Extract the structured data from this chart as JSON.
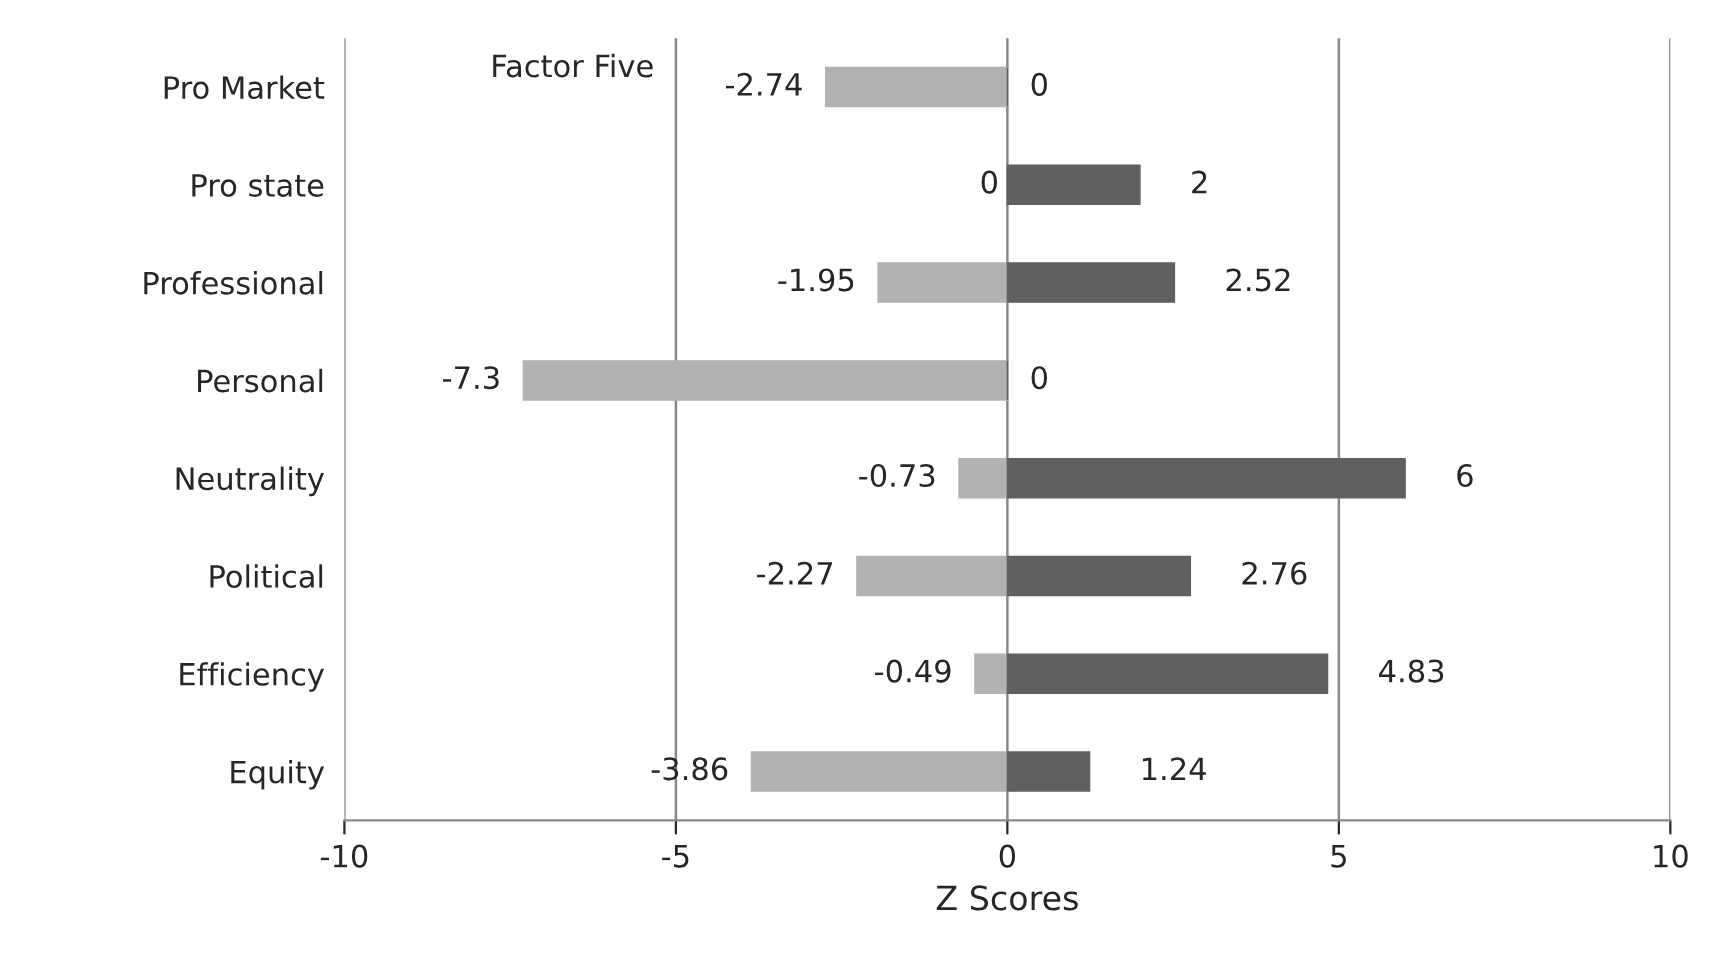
{
  "chart_data": {
    "type": "bar",
    "orientation": "horizontal",
    "stacked": true,
    "xlabel": "Z Scores",
    "categories": [
      "Pro Market",
      "Pro state",
      "Professional",
      "Personal",
      "Neutrality",
      "Political",
      "Efficiency",
      "Equity"
    ],
    "series": [
      {
        "color": "#b2b2b2",
        "values": [
          -2.74,
          0,
          -1.95,
          -7.3,
          -0.73,
          -2.27,
          -0.49,
          -3.86
        ]
      },
      {
        "color": "#606060",
        "values": [
          0,
          2,
          2.52,
          0,
          6,
          2.76,
          4.83,
          1.24
        ]
      }
    ],
    "xlim": [
      -10,
      10
    ],
    "xticks": [
      -10,
      -5,
      0,
      5,
      10
    ],
    "grid": "x",
    "data_labels": true,
    "legend": false,
    "annotations": [
      "Factor Five"
    ]
  }
}
